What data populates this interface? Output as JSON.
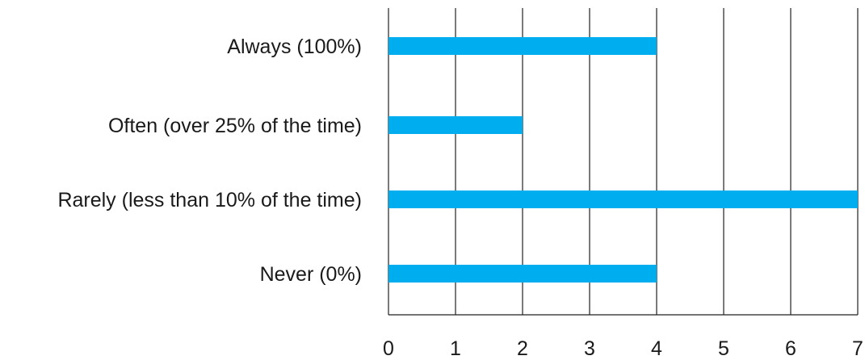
{
  "chart_data": {
    "type": "bar",
    "orientation": "horizontal",
    "title": "",
    "xlabel": "",
    "ylabel": "",
    "categories": [
      "Always (100%)",
      "Often (over 25% of the time)",
      "Rarely (less than 10% of the time)",
      "Never (0%)"
    ],
    "values": [
      4,
      2,
      7,
      4
    ],
    "xlim": [
      0,
      7
    ],
    "xticks": [
      "0",
      "1",
      "2",
      "3",
      "4",
      "5",
      "6",
      "7"
    ],
    "grid": "vertical",
    "legend": "none",
    "colors": {
      "bar": "#00aeef",
      "grid": "#222222",
      "text": "#1a1a1a"
    }
  }
}
